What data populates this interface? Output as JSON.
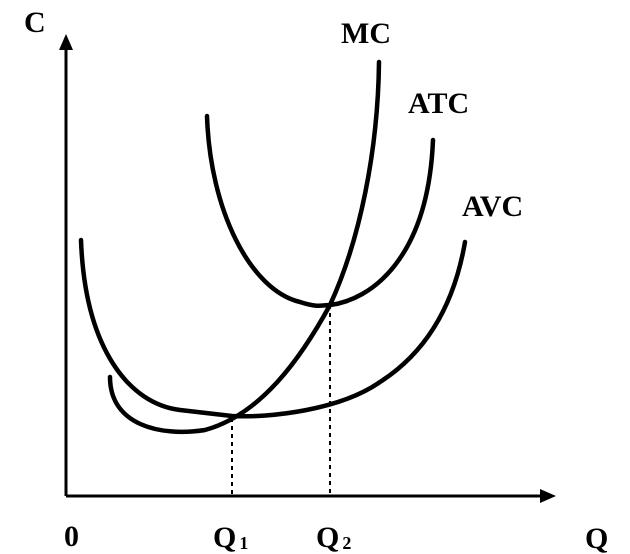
{
  "axes": {
    "y_label": "C",
    "x_label": "Q",
    "origin_label": "0"
  },
  "curves": {
    "mc": "MC",
    "atc": "ATC",
    "avc": "AVC"
  },
  "quantities": {
    "q1": {
      "letter": "Q",
      "subscript": "1"
    },
    "q2": {
      "letter": "Q",
      "subscript": "2"
    }
  },
  "colors": {
    "ink": "#000000",
    "background": "#ffffff"
  }
}
